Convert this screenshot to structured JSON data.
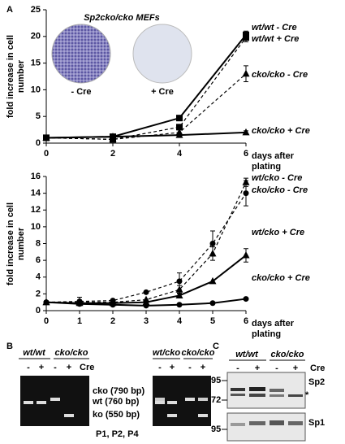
{
  "chart_data": [
    {
      "type": "line",
      "ylabel": "fold increase in cell number",
      "xlabel": "days after plating",
      "x": [
        0,
        2,
        4,
        6
      ],
      "xlim": [
        0,
        6
      ],
      "xticks": [
        0,
        2,
        4,
        6
      ],
      "ylim": [
        0,
        25
      ],
      "yticks": [
        0,
        5,
        10,
        15,
        20,
        25
      ],
      "series": [
        {
          "name": "wt/wt - Cre",
          "color": "#000000",
          "dash": false,
          "marker": "square",
          "values": [
            1,
            1.2,
            4.7,
            20.3
          ],
          "errors": [
            null,
            null,
            0.3,
            0.7
          ]
        },
        {
          "name": "wt/wt + Cre",
          "color": "#000000",
          "dash": true,
          "marker": "square",
          "values": [
            1,
            0.7,
            3.0,
            19.8
          ],
          "errors": [
            null,
            null,
            0.5,
            0.8
          ]
        },
        {
          "name": "cko/cko - Cre",
          "color": "#000000",
          "dash": true,
          "marker": "triangle",
          "values": [
            1,
            0.7,
            2.0,
            13.0
          ],
          "errors": [
            null,
            null,
            0.5,
            1.5
          ]
        },
        {
          "name": "cko/cko + Cre",
          "color": "#000000",
          "dash": false,
          "marker": "triangle",
          "values": [
            1,
            1.2,
            1.5,
            2.0
          ],
          "errors": [
            null,
            null,
            null,
            0.3
          ]
        }
      ]
    },
    {
      "type": "line",
      "ylabel": "fold increase in cell number",
      "xlabel": "days after plating",
      "x": [
        0,
        1,
        2,
        3,
        4,
        5,
        6
      ],
      "xlim": [
        0,
        6
      ],
      "xticks": [
        0,
        1,
        2,
        3,
        4,
        5,
        6
      ],
      "ylim": [
        0,
        16
      ],
      "yticks": [
        0,
        2,
        4,
        6,
        8,
        10,
        12,
        14,
        16
      ],
      "series": [
        {
          "name": "wt/cko - Cre",
          "color": "#000000",
          "dash": true,
          "marker": "triangle",
          "values": [
            1,
            1.0,
            1.0,
            1.3,
            2.5,
            6.8,
            15.3
          ],
          "errors": [
            null,
            null,
            null,
            null,
            0.5,
            0.8,
            0.5
          ]
        },
        {
          "name": "cko/cko - Cre",
          "color": "#000000",
          "dash": true,
          "marker": "circle",
          "values": [
            1,
            1.1,
            1.2,
            2.2,
            3.5,
            8.0,
            14.0
          ],
          "errors": [
            null,
            0.5,
            null,
            null,
            1.0,
            1.5,
            1.5
          ]
        },
        {
          "name": "wt/cko + Cre",
          "color": "#000000",
          "dash": false,
          "marker": "triangle",
          "values": [
            1,
            0.9,
            0.9,
            1.0,
            1.8,
            3.5,
            6.6
          ],
          "errors": [
            null,
            null,
            null,
            null,
            0.3,
            null,
            0.8
          ]
        },
        {
          "name": "cko/cko + Cre",
          "color": "#000000",
          "dash": false,
          "marker": "circle",
          "values": [
            1,
            0.8,
            0.7,
            0.6,
            0.7,
            0.9,
            1.4
          ],
          "errors": [
            null,
            null,
            null,
            null,
            null,
            null,
            null
          ]
        }
      ]
    }
  ],
  "panel_labels": [
    "A",
    "B",
    "C"
  ],
  "inset": {
    "title": "Sp2cko/cko MEFs",
    "labels": [
      "- Cre",
      "+ Cre"
    ]
  },
  "gel": {
    "headers": [
      "wt/wt",
      "cko/cko",
      "wt/cko",
      "cko/cko"
    ],
    "lanes": [
      "-",
      "+",
      "-",
      "+",
      "-",
      "+",
      "-",
      "+"
    ],
    "treatment": "Cre",
    "bands": [
      "cko (790 bp)",
      "wt (760 bp)",
      "ko (550 bp)"
    ],
    "passages": "P1, P2, P4"
  },
  "western": {
    "headers": [
      "wt/wt",
      "cko/cko"
    ],
    "lanes": [
      "-",
      "+",
      "-",
      "+"
    ],
    "treatment": "Cre",
    "markers": [
      "95",
      "72",
      "95"
    ],
    "proteins": [
      "Sp2",
      "*",
      "Sp1"
    ]
  }
}
